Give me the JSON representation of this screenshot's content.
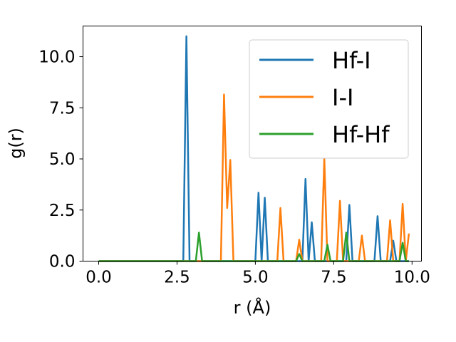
{
  "chart_data": {
    "type": "line",
    "title": "",
    "xlabel": "r (Å)",
    "ylabel": "g(r)",
    "xlim": [
      -0.5,
      10.3
    ],
    "ylim": [
      0,
      11.5
    ],
    "x_ticks": [
      "0.0",
      "2.5",
      "5.0",
      "7.5",
      "10.0"
    ],
    "y_ticks": [
      "0.0",
      "2.5",
      "5.0",
      "7.5",
      "10.0"
    ],
    "grid": false,
    "legend_position": "top-right",
    "x": [
      0.0,
      0.1,
      0.2,
      0.3,
      0.4,
      0.5,
      0.6,
      0.7,
      0.8,
      0.9,
      1.0,
      1.1,
      1.2,
      1.3,
      1.4,
      1.5,
      1.6,
      1.7,
      1.8,
      1.9,
      2.0,
      2.1,
      2.2,
      2.3,
      2.4,
      2.5,
      2.6,
      2.7,
      2.8,
      2.9,
      3.0,
      3.1,
      3.2,
      3.3,
      3.4,
      3.5,
      3.6,
      3.7,
      3.8,
      3.9,
      4.0,
      4.1,
      4.2,
      4.3,
      4.4,
      4.5,
      4.6,
      4.7,
      4.8,
      4.9,
      5.0,
      5.1,
      5.2,
      5.3,
      5.4,
      5.5,
      5.6,
      5.7,
      5.8,
      5.9,
      6.0,
      6.1,
      6.2,
      6.3,
      6.4,
      6.5,
      6.6,
      6.7,
      6.8,
      6.9,
      7.0,
      7.1,
      7.2,
      7.3,
      7.4,
      7.5,
      7.6,
      7.7,
      7.8,
      7.9,
      8.0,
      8.1,
      8.2,
      8.3,
      8.4,
      8.5,
      8.6,
      8.7,
      8.8,
      8.9,
      9.0,
      9.1,
      9.2,
      9.3,
      9.4,
      9.5,
      9.6,
      9.7,
      9.8,
      9.9
    ],
    "series": [
      {
        "name": "Hf-I",
        "color": "#1f77b4",
        "values": [
          0,
          0,
          0,
          0,
          0,
          0,
          0,
          0,
          0,
          0,
          0,
          0,
          0,
          0,
          0,
          0,
          0,
          0,
          0,
          0,
          0,
          0,
          0,
          0,
          0,
          0,
          0,
          0,
          11.0,
          0,
          0,
          0,
          0,
          0,
          0,
          0,
          0,
          0,
          0,
          0,
          0,
          0,
          0,
          0,
          0,
          0,
          0,
          0,
          0,
          0,
          0,
          3.35,
          0,
          3.1,
          0,
          0,
          0,
          0,
          0,
          0,
          0,
          0,
          0,
          0,
          0,
          0,
          4.02,
          0,
          1.9,
          0,
          0,
          0,
          0,
          0,
          0,
          0,
          0,
          0,
          0,
          0,
          2.75,
          0,
          0,
          0,
          0,
          0,
          0,
          0,
          0,
          2.2,
          0,
          0,
          0,
          0,
          1.0,
          0,
          0,
          0,
          0,
          0
        ]
      },
      {
        "name": "I-I",
        "color": "#ff7f0e",
        "values": [
          0,
          0,
          0,
          0,
          0,
          0,
          0,
          0,
          0,
          0,
          0,
          0,
          0,
          0,
          0,
          0,
          0,
          0,
          0,
          0,
          0,
          0,
          0,
          0,
          0,
          0,
          0,
          0,
          0,
          0,
          0,
          0,
          0,
          0,
          0,
          0,
          0,
          0,
          0,
          0,
          8.15,
          2.6,
          4.95,
          0,
          0,
          0,
          0,
          0,
          0,
          0,
          0,
          0,
          0,
          0,
          0,
          0,
          0,
          0,
          2.6,
          0,
          0,
          0,
          0,
          0,
          1.05,
          0,
          0,
          0,
          0,
          0,
          0,
          0,
          5.0,
          0,
          0,
          0,
          0,
          2.95,
          0,
          0,
          0,
          0,
          0,
          0,
          1.25,
          0,
          0,
          0,
          0,
          0,
          0,
          0,
          0,
          2.0,
          0,
          0,
          0,
          2.8,
          0,
          1.35
        ]
      },
      {
        "name": "Hf-Hf",
        "color": "#2ca02c",
        "values": [
          0,
          0,
          0,
          0,
          0,
          0,
          0,
          0,
          0,
          0,
          0,
          0,
          0,
          0,
          0,
          0,
          0,
          0,
          0,
          0,
          0,
          0,
          0,
          0,
          0,
          0,
          0,
          0,
          0,
          0,
          0,
          0,
          1.4,
          0,
          0,
          0,
          0,
          0,
          0,
          0,
          0,
          0,
          0,
          0,
          0,
          0,
          0,
          0,
          0,
          0,
          0,
          0,
          0,
          0,
          0,
          0,
          0,
          0,
          0,
          0,
          0,
          0,
          0,
          0,
          0.35,
          0,
          0,
          0,
          0,
          0,
          0,
          0,
          0,
          0.8,
          0,
          0,
          0,
          0,
          0,
          1.4,
          0,
          0,
          0,
          0,
          0,
          0,
          0,
          0,
          0,
          0,
          0,
          0,
          0,
          0,
          0,
          0,
          0,
          0.9,
          0,
          0
        ]
      }
    ]
  }
}
